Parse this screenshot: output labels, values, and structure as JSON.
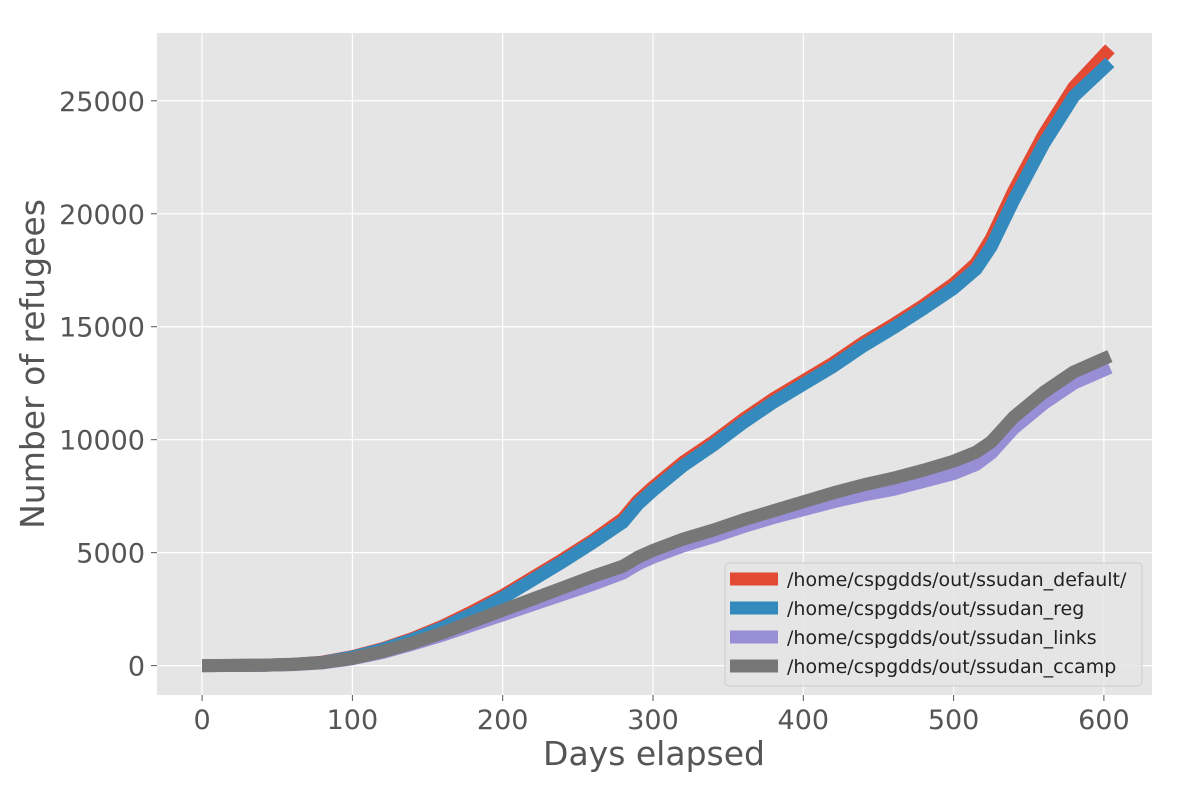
{
  "chart_data": {
    "type": "line",
    "title": "",
    "xlabel": "Days elapsed",
    "ylabel": "Number of refugees",
    "xlim": [
      -30,
      632
    ],
    "ylim": [
      -1300,
      28000
    ],
    "xticks": [
      0,
      100,
      200,
      300,
      400,
      500,
      600
    ],
    "yticks": [
      0,
      5000,
      10000,
      15000,
      20000,
      25000
    ],
    "grid": true,
    "legend_position": "lower-right",
    "colors": {
      "background": "#e5e5e5",
      "grid": "#ffffff",
      "text": "#555555"
    },
    "series": [
      {
        "name": "/home/cspgdds/out/ssudan_default/",
        "color": "#e24a33",
        "x": [
          0,
          40,
          60,
          80,
          100,
          120,
          140,
          160,
          180,
          200,
          220,
          240,
          260,
          280,
          290,
          300,
          320,
          340,
          360,
          380,
          400,
          420,
          440,
          460,
          480,
          500,
          515,
          525,
          540,
          560,
          580,
          604
        ],
        "y": [
          0,
          20,
          60,
          150,
          400,
          750,
          1200,
          1750,
          2400,
          3100,
          3900,
          4700,
          5550,
          6500,
          7300,
          7900,
          9000,
          9900,
          10900,
          11800,
          12600,
          13400,
          14300,
          15100,
          15950,
          16900,
          17800,
          18900,
          21000,
          23500,
          25600,
          27300
        ]
      },
      {
        "name": "/home/cspgdds/out/ssudan_reg",
        "color": "#348abd",
        "x": [
          0,
          40,
          60,
          80,
          100,
          120,
          140,
          160,
          180,
          200,
          220,
          240,
          260,
          280,
          290,
          300,
          320,
          340,
          360,
          380,
          400,
          420,
          440,
          460,
          480,
          500,
          515,
          525,
          540,
          560,
          580,
          604
        ],
        "y": [
          0,
          20,
          55,
          140,
          380,
          720,
          1150,
          1680,
          2300,
          3000,
          3800,
          4600,
          5450,
          6350,
          7150,
          7750,
          8850,
          9750,
          10750,
          11650,
          12450,
          13250,
          14150,
          14950,
          15800,
          16700,
          17550,
          18550,
          20600,
          23100,
          25200,
          26700
        ]
      },
      {
        "name": "/home/cspgdds/out/ssudan_links",
        "color": "#988ed5",
        "x": [
          0,
          40,
          60,
          80,
          100,
          120,
          140,
          160,
          180,
          200,
          220,
          240,
          260,
          280,
          290,
          300,
          320,
          340,
          360,
          380,
          400,
          420,
          440,
          460,
          480,
          500,
          515,
          525,
          540,
          560,
          580,
          604
        ],
        "y": [
          0,
          15,
          45,
          120,
          300,
          580,
          950,
          1350,
          1800,
          2250,
          2700,
          3150,
          3600,
          4100,
          4500,
          4800,
          5300,
          5700,
          6150,
          6550,
          6900,
          7250,
          7550,
          7800,
          8150,
          8500,
          8900,
          9400,
          10500,
          11600,
          12500,
          13200
        ]
      },
      {
        "name": "/home/cspgdds/out/ssudan_ccamp",
        "color": "#777777",
        "x": [
          0,
          40,
          60,
          80,
          100,
          120,
          140,
          160,
          180,
          200,
          220,
          240,
          260,
          280,
          290,
          300,
          320,
          340,
          360,
          380,
          400,
          420,
          440,
          460,
          480,
          500,
          515,
          525,
          540,
          560,
          580,
          604
        ],
        "y": [
          0,
          15,
          50,
          130,
          320,
          620,
          1000,
          1450,
          1950,
          2450,
          2950,
          3450,
          3950,
          4400,
          4800,
          5100,
          5600,
          6000,
          6450,
          6850,
          7250,
          7650,
          8000,
          8300,
          8650,
          9050,
          9450,
          9900,
          11000,
          12100,
          13000,
          13700
        ]
      }
    ]
  }
}
